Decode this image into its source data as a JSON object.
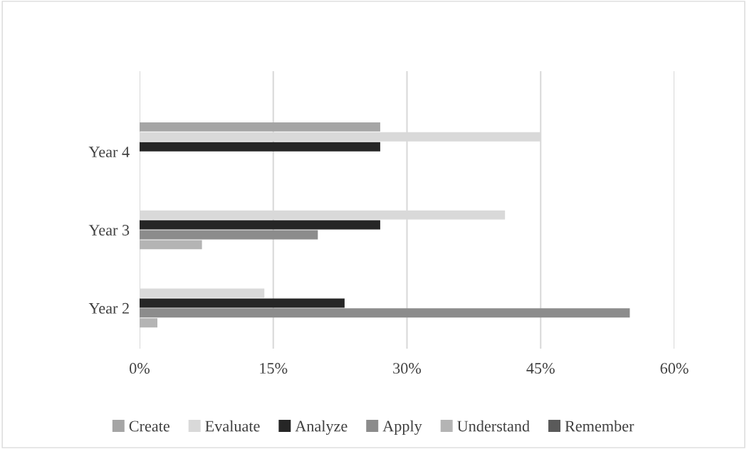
{
  "chart_data": {
    "type": "bar",
    "orientation": "horizontal",
    "categories": [
      "Year 4",
      "Year 3",
      "Year 2"
    ],
    "series": [
      {
        "name": "Create",
        "color": "#a5a5a5",
        "values": [
          27,
          null,
          null
        ]
      },
      {
        "name": "Evaluate",
        "color": "#d9d9d9",
        "values": [
          45,
          41,
          14
        ]
      },
      {
        "name": "Analyze",
        "color": "#262626",
        "values": [
          27,
          27,
          23
        ]
      },
      {
        "name": "Apply",
        "color": "#8c8c8c",
        "values": [
          null,
          20,
          55
        ]
      },
      {
        "name": "Understand",
        "color": "#b4b4b4",
        "values": [
          null,
          7,
          2
        ]
      },
      {
        "name": "Remember",
        "color": "#5a5a5a",
        "values": [
          null,
          null,
          null
        ]
      }
    ],
    "xlim": [
      0,
      60
    ],
    "xticks": [
      {
        "value": 0,
        "label": "0%"
      },
      {
        "value": 15,
        "label": "15%"
      },
      {
        "value": 30,
        "label": "30%"
      },
      {
        "value": 45,
        "label": "45%"
      },
      {
        "value": 60,
        "label": "60%"
      }
    ],
    "grid": "x",
    "legend": "bottom"
  }
}
